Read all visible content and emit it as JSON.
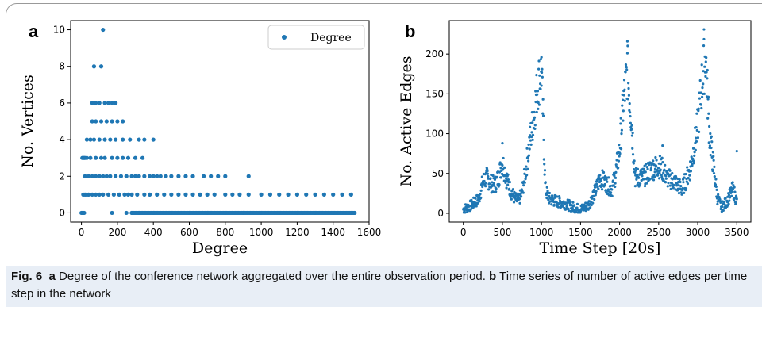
{
  "panels": {
    "a": "a",
    "b": "b"
  },
  "caption": {
    "fig": "Fig. 6",
    "a_label": "a",
    "a_text": "Degree of the conference network aggregated over the entire observation period.",
    "b_label": "b",
    "b_text": "Time series of number of active edges per time step in the network"
  },
  "colors": {
    "marker": "#1f77b4"
  },
  "chart_data": [
    {
      "type": "scatter",
      "xlabel": "Degree",
      "ylabel": "No. Vertices",
      "legend": [
        "Degree"
      ],
      "legend_position": "top-right",
      "xlim": [
        -60,
        1600
      ],
      "ylim": [
        -0.5,
        10.5
      ],
      "xticks": [
        0,
        200,
        400,
        600,
        800,
        1000,
        1200,
        1400,
        1600
      ],
      "yticks": [
        0,
        2,
        4,
        6,
        8,
        10
      ],
      "grid": false,
      "points": [
        [
          0,
          0
        ],
        [
          5,
          0
        ],
        [
          10,
          0
        ],
        [
          15,
          0
        ],
        [
          5,
          3
        ],
        [
          10,
          3
        ],
        [
          15,
          3
        ],
        [
          20,
          3
        ],
        [
          30,
          3
        ],
        [
          50,
          3
        ],
        [
          80,
          3
        ],
        [
          110,
          3
        ],
        [
          130,
          3
        ],
        [
          170,
          3
        ],
        [
          200,
          3
        ],
        [
          230,
          3
        ],
        [
          260,
          3
        ],
        [
          300,
          3
        ],
        [
          340,
          3
        ],
        [
          10,
          1
        ],
        [
          20,
          1
        ],
        [
          30,
          1
        ],
        [
          40,
          1
        ],
        [
          60,
          1
        ],
        [
          80,
          1
        ],
        [
          100,
          1
        ],
        [
          120,
          1
        ],
        [
          150,
          1
        ],
        [
          180,
          1
        ],
        [
          210,
          1
        ],
        [
          240,
          1
        ],
        [
          260,
          1
        ],
        [
          280,
          1
        ],
        [
          310,
          1
        ],
        [
          350,
          1
        ],
        [
          380,
          1
        ],
        [
          420,
          1
        ],
        [
          460,
          1
        ],
        [
          500,
          1
        ],
        [
          540,
          1
        ],
        [
          580,
          1
        ],
        [
          620,
          1
        ],
        [
          660,
          1
        ],
        [
          700,
          1
        ],
        [
          740,
          1
        ],
        [
          800,
          1
        ],
        [
          840,
          1
        ],
        [
          880,
          1
        ],
        [
          930,
          1
        ],
        [
          1000,
          1
        ],
        [
          1050,
          1
        ],
        [
          1100,
          1
        ],
        [
          1150,
          1
        ],
        [
          1200,
          1
        ],
        [
          1250,
          1
        ],
        [
          1300,
          1
        ],
        [
          1350,
          1
        ],
        [
          1400,
          1
        ],
        [
          1450,
          1
        ],
        [
          1500,
          1
        ],
        [
          20,
          2
        ],
        [
          40,
          2
        ],
        [
          60,
          2
        ],
        [
          80,
          2
        ],
        [
          100,
          2
        ],
        [
          120,
          2
        ],
        [
          140,
          2
        ],
        [
          160,
          2
        ],
        [
          190,
          2
        ],
        [
          220,
          2
        ],
        [
          250,
          2
        ],
        [
          280,
          2
        ],
        [
          300,
          2
        ],
        [
          320,
          2
        ],
        [
          350,
          2
        ],
        [
          380,
          2
        ],
        [
          400,
          2
        ],
        [
          420,
          2
        ],
        [
          440,
          2
        ],
        [
          470,
          2
        ],
        [
          500,
          2
        ],
        [
          540,
          2
        ],
        [
          580,
          2
        ],
        [
          620,
          2
        ],
        [
          680,
          2
        ],
        [
          720,
          2
        ],
        [
          760,
          2
        ],
        [
          800,
          2
        ],
        [
          930,
          2
        ],
        [
          30,
          4
        ],
        [
          50,
          4
        ],
        [
          70,
          4
        ],
        [
          100,
          4
        ],
        [
          130,
          4
        ],
        [
          160,
          4
        ],
        [
          190,
          4
        ],
        [
          230,
          4
        ],
        [
          270,
          4
        ],
        [
          320,
          4
        ],
        [
          350,
          4
        ],
        [
          400,
          4
        ],
        [
          60,
          5
        ],
        [
          80,
          5
        ],
        [
          110,
          5
        ],
        [
          140,
          5
        ],
        [
          170,
          5
        ],
        [
          200,
          5
        ],
        [
          230,
          5
        ],
        [
          60,
          6
        ],
        [
          80,
          6
        ],
        [
          100,
          6
        ],
        [
          130,
          6
        ],
        [
          150,
          6
        ],
        [
          170,
          6
        ],
        [
          190,
          6
        ],
        [
          70,
          8
        ],
        [
          110,
          8
        ],
        [
          120,
          10
        ],
        [
          170,
          0
        ],
        [
          250,
          0
        ],
        [
          280,
          0
        ],
        [
          320,
          0
        ],
        [
          400,
          0
        ],
        [
          500,
          0
        ],
        [
          600,
          0
        ],
        [
          700,
          0
        ],
        [
          800,
          0
        ],
        [
          900,
          0
        ],
        [
          1000,
          0
        ],
        [
          1100,
          0
        ],
        [
          1200,
          0
        ],
        [
          1300,
          0
        ],
        [
          1400,
          0
        ],
        [
          1500,
          0
        ],
        [
          1520,
          0
        ]
      ]
    },
    {
      "type": "scatter",
      "xlabel": "Time Step [20s]",
      "ylabel": "No. Active Edges",
      "xlim": [
        -180,
        3680
      ],
      "ylim": [
        -11,
        242
      ],
      "xticks": [
        0,
        500,
        1000,
        1500,
        2000,
        2500,
        3000,
        3500
      ],
      "yticks": [
        0,
        50,
        100,
        150,
        200
      ],
      "grid": false,
      "series_profile": [
        [
          0,
          5
        ],
        [
          100,
          10
        ],
        [
          200,
          18
        ],
        [
          250,
          40
        ],
        [
          300,
          45
        ],
        [
          350,
          38
        ],
        [
          400,
          35
        ],
        [
          450,
          45
        ],
        [
          500,
          65
        ],
        [
          550,
          45
        ],
        [
          600,
          30
        ],
        [
          650,
          20
        ],
        [
          700,
          15
        ],
        [
          750,
          25
        ],
        [
          800,
          55
        ],
        [
          850,
          90
        ],
        [
          900,
          120
        ],
        [
          950,
          160
        ],
        [
          1000,
          180
        ],
        [
          1050,
          30
        ],
        [
          1100,
          18
        ],
        [
          1200,
          15
        ],
        [
          1300,
          12
        ],
        [
          1400,
          8
        ],
        [
          1500,
          5
        ],
        [
          1600,
          10
        ],
        [
          1650,
          20
        ],
        [
          1700,
          30
        ],
        [
          1750,
          45
        ],
        [
          1800,
          40
        ],
        [
          1850,
          35
        ],
        [
          1900,
          30
        ],
        [
          1950,
          50
        ],
        [
          2000,
          80
        ],
        [
          2050,
          140
        ],
        [
          2100,
          180
        ],
        [
          2150,
          120
        ],
        [
          2200,
          45
        ],
        [
          2300,
          45
        ],
        [
          2400,
          55
        ],
        [
          2500,
          60
        ],
        [
          2550,
          55
        ],
        [
          2600,
          45
        ],
        [
          2700,
          40
        ],
        [
          2800,
          30
        ],
        [
          2900,
          55
        ],
        [
          2950,
          80
        ],
        [
          3000,
          110
        ],
        [
          3050,
          160
        ],
        [
          3100,
          200
        ],
        [
          3150,
          100
        ],
        [
          3200,
          60
        ],
        [
          3250,
          20
        ],
        [
          3300,
          8
        ],
        [
          3350,
          12
        ],
        [
          3400,
          20
        ],
        [
          3450,
          30
        ],
        [
          3500,
          15
        ]
      ],
      "peaks": [
        [
          1000,
          196
        ],
        [
          2100,
          216
        ],
        [
          3080,
          231
        ],
        [
          500,
          88
        ],
        [
          2550,
          85
        ],
        [
          3500,
          78
        ]
      ]
    }
  ]
}
